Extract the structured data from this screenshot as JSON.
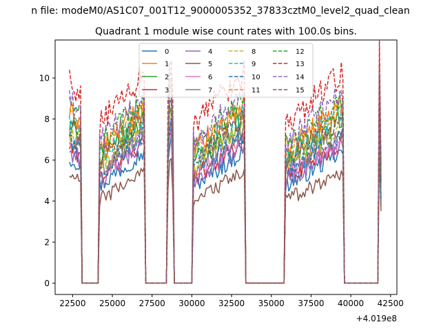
{
  "chart_data": {
    "type": "line",
    "suptitle": "n file: modeM0/AS1C07_001T12_9000005352_37833cztM0_level2_quad_clean",
    "title": "Quadrant 1 module wise count rates with 100.0s bins.",
    "xlabel": "",
    "ylabel": "",
    "offset_text": "+4.019e8",
    "xlim": [
      21400,
      42900
    ],
    "ylim": [
      -0.55,
      11.85
    ],
    "xticks": [
      22500,
      25000,
      27500,
      30000,
      32500,
      35000,
      37500,
      40000,
      42500
    ],
    "xtick_labels": [
      "22500",
      "25000",
      "27500",
      "30000",
      "32500",
      "35000",
      "37500",
      "40000",
      "42500"
    ],
    "yticks": [
      0,
      2,
      4,
      6,
      8,
      10
    ],
    "ytick_labels": [
      "0",
      "2",
      "4",
      "6",
      "8",
      "10"
    ],
    "grid": false,
    "legend_position": "top-center",
    "legend_columns": 4,
    "segments": [
      {
        "t0": 22300,
        "t1": 23000,
        "profile": "steady"
      },
      {
        "t0": 24200,
        "t1": 27000,
        "profile": "rising"
      },
      {
        "t0": 28500,
        "t1": 28800,
        "profile": "spike"
      },
      {
        "t0": 30100,
        "t1": 33300,
        "profile": "rising"
      },
      {
        "t0": 35900,
        "t1": 39500,
        "profile": "rising"
      },
      {
        "t0": 41800,
        "t1": 41900,
        "profile": "tail"
      }
    ],
    "zero_value": 0,
    "series": [
      {
        "name": "0",
        "style": "solid",
        "color": "#1f77b4",
        "level": 6.1
      },
      {
        "name": "1",
        "style": "solid",
        "color": "#ff7f0e",
        "level": 8.3
      },
      {
        "name": "2",
        "style": "solid",
        "color": "#2ca02c",
        "level": 7.6
      },
      {
        "name": "3",
        "style": "solid",
        "color": "#d62728",
        "level": 6.6
      },
      {
        "name": "4",
        "style": "solid",
        "color": "#9467bd",
        "level": 6.4
      },
      {
        "name": "5",
        "style": "solid",
        "color": "#8c564b",
        "level": 5.2
      },
      {
        "name": "6",
        "style": "solid",
        "color": "#e377c2",
        "level": 6.8
      },
      {
        "name": "7",
        "style": "solid",
        "color": "#7f7f7f",
        "level": 7.1
      },
      {
        "name": "8",
        "style": "dashed",
        "color": "#bcbd22",
        "level": 7.3
      },
      {
        "name": "9",
        "style": "dashed",
        "color": "#17becf",
        "level": 7.9
      },
      {
        "name": "10",
        "style": "dashed",
        "color": "#1f77b4",
        "level": 6.9
      },
      {
        "name": "11",
        "style": "dashed",
        "color": "#ff7f0e",
        "level": 8.1
      },
      {
        "name": "12",
        "style": "dashed",
        "color": "#2ca02c",
        "level": 8.6
      },
      {
        "name": "13",
        "style": "dashed",
        "color": "#d62728",
        "level": 9.8
      },
      {
        "name": "14",
        "style": "dashed",
        "color": "#9467bd",
        "level": 8.8
      },
      {
        "name": "15",
        "style": "dashed",
        "color": "#8c564b",
        "level": 7.7
      }
    ]
  }
}
